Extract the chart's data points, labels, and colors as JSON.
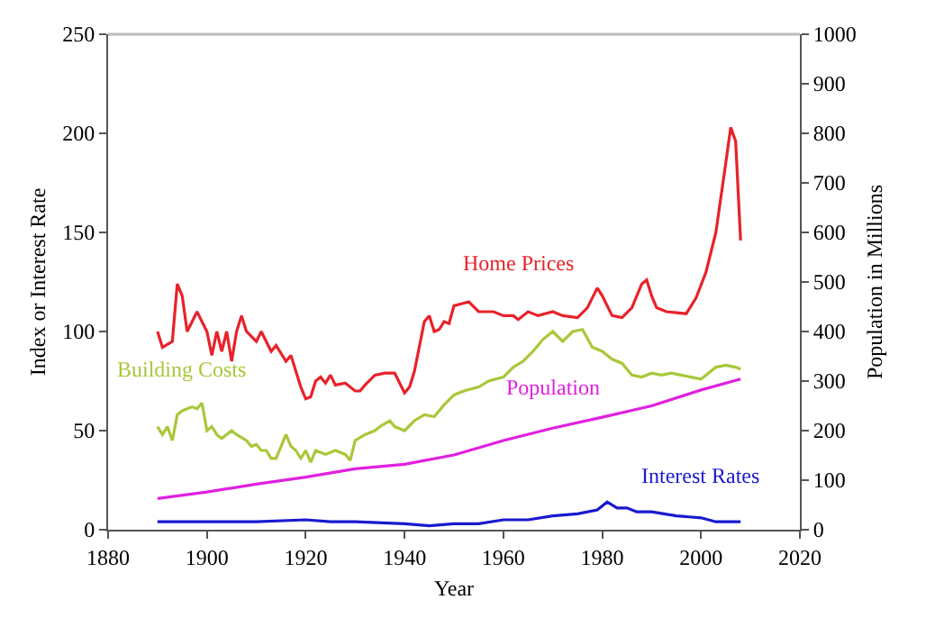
{
  "chart_data": {
    "type": "line",
    "xlabel": "Year",
    "ylabel": "Index or Interest Rate",
    "y2label": "Population in Millions",
    "xlim": [
      1880,
      2020
    ],
    "xticks": [
      1880,
      1900,
      1920,
      1940,
      1960,
      1980,
      2000,
      2020
    ],
    "ylim": [
      0,
      250
    ],
    "yticks": [
      0,
      50,
      100,
      150,
      200,
      250
    ],
    "y2lim": [
      0,
      1000
    ],
    "y2ticks": [
      0,
      100,
      200,
      300,
      400,
      500,
      600,
      700,
      800,
      900,
      1000
    ],
    "legend": false,
    "marker": "none",
    "line_style": "solid",
    "series": [
      {
        "name": "Home Prices",
        "color": "#e8222a",
        "x": [
          1890,
          1891,
          1893,
          1894,
          1895,
          1896,
          1898,
          1900,
          1901,
          1902,
          1903,
          1904,
          1905,
          1906,
          1907,
          1908,
          1910,
          1911,
          1913,
          1914,
          1916,
          1917,
          1918,
          1919,
          1920,
          1921,
          1922,
          1923,
          1924,
          1925,
          1926,
          1928,
          1930,
          1931,
          1932,
          1934,
          1936,
          1938,
          1940,
          1941,
          1942,
          1944,
          1945,
          1946,
          1947,
          1948,
          1949,
          1950,
          1953,
          1955,
          1958,
          1960,
          1962,
          1963,
          1965,
          1967,
          1970,
          1972,
          1975,
          1977,
          1979,
          1980,
          1982,
          1984,
          1986,
          1988,
          1989,
          1990,
          1991,
          1993,
          1997,
          1999,
          2001,
          2003,
          2005,
          2006,
          2007,
          2008
        ],
        "values": [
          100,
          92,
          95,
          124,
          118,
          100,
          110,
          100,
          88,
          100,
          90,
          100,
          85,
          100,
          108,
          100,
          95,
          100,
          90,
          93,
          85,
          88,
          80,
          72,
          66,
          67,
          75,
          77,
          74,
          78,
          73,
          74,
          70,
          70,
          73,
          78,
          79,
          79,
          69,
          72,
          80,
          105,
          108,
          100,
          101,
          105,
          104,
          113,
          115,
          110,
          110,
          108,
          108,
          106,
          110,
          108,
          110,
          108,
          107,
          112,
          122,
          118,
          108,
          107,
          112,
          124,
          126,
          118,
          112,
          110,
          109,
          117,
          130,
          150,
          185,
          203,
          196,
          146
        ]
      },
      {
        "name": "Building Costs",
        "color": "#a8c83a",
        "x": [
          1890,
          1891,
          1892,
          1893,
          1894,
          1895,
          1897,
          1898,
          1899,
          1900,
          1901,
          1902,
          1903,
          1905,
          1906,
          1908,
          1909,
          1910,
          1911,
          1912,
          1913,
          1914,
          1916,
          1917,
          1918,
          1919,
          1920,
          1921,
          1922,
          1924,
          1926,
          1928,
          1929,
          1930,
          1932,
          1934,
          1935,
          1937,
          1938,
          1940,
          1942,
          1944,
          1946,
          1948,
          1950,
          1952,
          1955,
          1957,
          1960,
          1962,
          1964,
          1966,
          1968,
          1970,
          1972,
          1974,
          1976,
          1978,
          1980,
          1982,
          1984,
          1986,
          1988,
          1990,
          1992,
          1994,
          1996,
          1998,
          2000,
          2001,
          2003,
          2005,
          2007,
          2008
        ],
        "values": [
          52,
          48,
          52,
          45,
          58,
          60,
          62,
          61,
          64,
          50,
          52,
          48,
          46,
          50,
          48,
          45,
          42,
          43,
          40,
          40,
          36,
          36,
          48,
          42,
          40,
          36,
          40,
          34,
          40,
          38,
          40,
          38,
          35,
          45,
          48,
          50,
          52,
          55,
          52,
          50,
          55,
          58,
          57,
          63,
          68,
          70,
          72,
          75,
          77,
          82,
          85,
          90,
          96,
          100,
          95,
          100,
          101,
          92,
          90,
          86,
          84,
          78,
          77,
          79,
          78,
          79,
          78,
          77,
          76,
          78,
          82,
          83,
          82,
          81
        ]
      },
      {
        "name": "Population",
        "color": "#e020e0",
        "axis": "y2",
        "x": [
          1890,
          1900,
          1910,
          1920,
          1930,
          1940,
          1950,
          1960,
          1970,
          1980,
          1990,
          2000,
          2008
        ],
        "values": [
          63,
          76,
          92,
          106,
          123,
          132,
          151,
          180,
          205,
          227,
          250,
          282,
          304
        ]
      },
      {
        "name": "Interest Rates",
        "color": "#1a1ad0",
        "x": [
          1890,
          1900,
          1910,
          1920,
          1925,
          1930,
          1940,
          1945,
          1950,
          1955,
          1960,
          1965,
          1970,
          1975,
          1979,
          1981,
          1983,
          1985,
          1987,
          1990,
          1995,
          2000,
          2003,
          2005,
          2008
        ],
        "values": [
          4,
          4,
          4,
          5,
          4,
          4,
          3,
          2,
          3,
          3,
          5,
          5,
          7,
          8,
          10,
          14,
          11,
          11,
          9,
          9,
          7,
          6,
          4,
          4,
          4
        ]
      }
    ]
  }
}
